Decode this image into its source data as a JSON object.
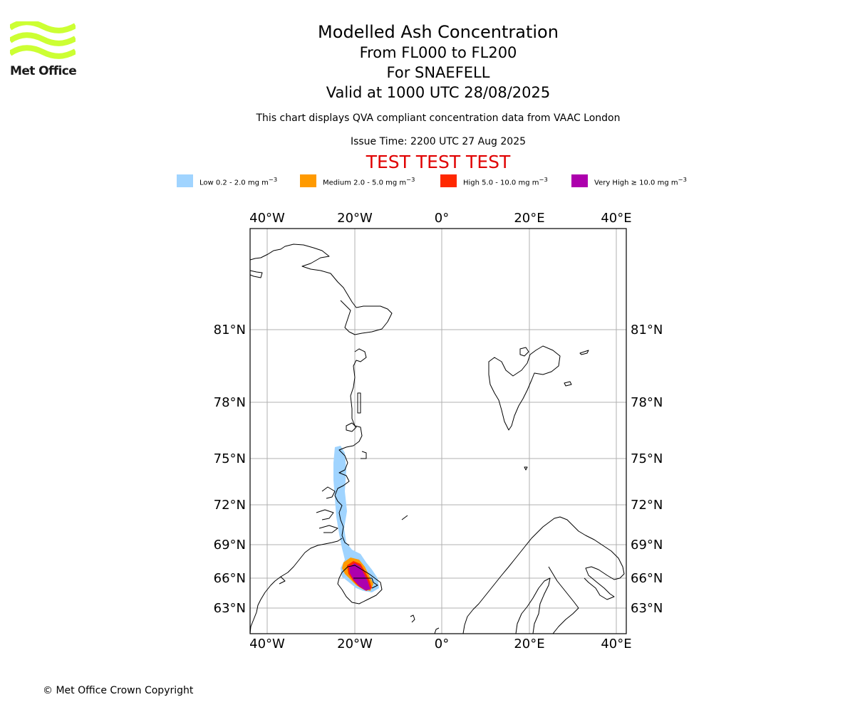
{
  "logo": {
    "text": "Met Office",
    "icon": "met-office-wave-logo",
    "color": "#ccff33"
  },
  "titles": {
    "main": "Modelled Ash Concentration",
    "levels": "From FL000 to FL200",
    "volcano": "For SNAEFELL",
    "valid": "Valid at 1000 UTC 28/08/2025"
  },
  "notes": {
    "qva": "This chart displays QVA compliant concentration data from VAAC London",
    "issue": "Issue Time: 2200 UTC 27 Aug 2025",
    "test": "TEST TEST TEST"
  },
  "legend": [
    {
      "label": "Low 0.2 - 2.0 mg m",
      "color": "#a0d4ff"
    },
    {
      "label": "Medium 2.0 - 5.0 mg m",
      "color": "#ff9a00"
    },
    {
      "label": "High 5.0 - 10.0 mg m",
      "color": "#ff2800"
    },
    {
      "label": "Very High ≥ 10.0 mg m",
      "color": "#ad00ad"
    }
  ],
  "legend_unit_exp": "−3",
  "map": {
    "lon_labels": [
      "40°W",
      "20°W",
      "0°",
      "20°E",
      "40°E"
    ],
    "lat_labels": [
      "81°N",
      "78°N",
      "75°N",
      "72°N",
      "69°N",
      "66°N",
      "63°N"
    ]
  },
  "copyright": "© Met Office Crown Copyright"
}
